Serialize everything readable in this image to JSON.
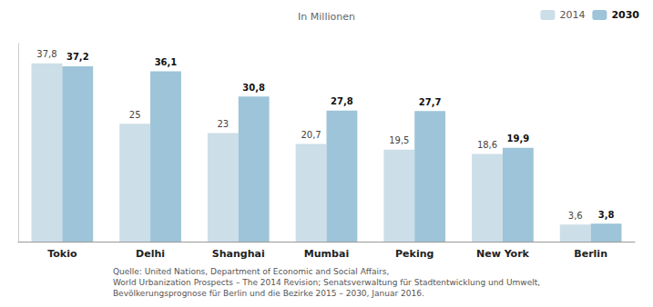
{
  "chart_data": {
    "type": "bar",
    "subtitle": "In Millionen",
    "footnote": "Quelle: United Nations, Department of Economic and Social Affairs,\nWorld Urbanization Prospects – The 2014 Revision; Senatsverwaltung für Stadtentwicklung und Umwelt,\nBevölkerungsprognose für Berlin und die Bezirke 2015 – 2030, Januar 2016.",
    "categories": [
      "Tokio",
      "Delhi",
      "Shanghai",
      "Mumbai",
      "Peking",
      "New York",
      "Berlin"
    ],
    "series": [
      {
        "name": "2014",
        "color": "#ccdee8",
        "values": [
          37.8,
          25.0,
          23.0,
          20.7,
          19.5,
          18.6,
          3.6
        ],
        "value_labels": [
          "37,8",
          "25",
          "23",
          "20,7",
          "19,5",
          "18,6",
          "3,6"
        ]
      },
      {
        "name": "2030",
        "color": "#9dc4d8",
        "values": [
          37.2,
          36.1,
          30.8,
          27.8,
          27.7,
          19.9,
          3.8
        ],
        "value_labels": [
          "37,2",
          "36,1",
          "30,8",
          "27,8",
          "27,7",
          "19,9",
          "3,8"
        ]
      }
    ],
    "ylim": [
      0,
      42
    ],
    "grid": false,
    "legend": "upper right",
    "data_labels": true,
    "tick_labels": "x"
  }
}
